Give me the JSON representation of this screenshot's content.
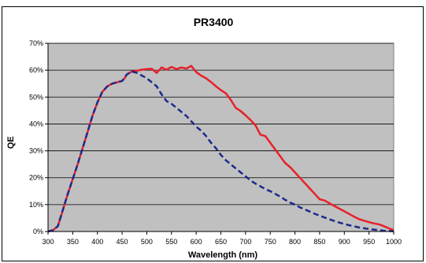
{
  "chart_data": {
    "type": "line",
    "title": "PR3400",
    "xlabel": "Wavelength (nm)",
    "ylabel": "QE",
    "xlim": [
      300,
      1000
    ],
    "ylim": [
      0,
      70
    ],
    "xticks": [
      300,
      350,
      400,
      450,
      500,
      550,
      600,
      650,
      700,
      750,
      800,
      850,
      900,
      950,
      1000
    ],
    "yticks": [
      "0%",
      "10%",
      "20%",
      "30%",
      "40%",
      "50%",
      "60%",
      "70%"
    ],
    "grid": true,
    "legend": "none",
    "plot_background": "#c0c0c0",
    "series": [
      {
        "color": "#e8202a",
        "style": "solid",
        "x": [
          300,
          310,
          320,
          330,
          340,
          350,
          360,
          370,
          380,
          390,
          400,
          410,
          420,
          430,
          440,
          450,
          455,
          460,
          470,
          480,
          490,
          500,
          510,
          520,
          530,
          540,
          550,
          560,
          570,
          580,
          590,
          600,
          610,
          620,
          630,
          640,
          650,
          660,
          670,
          680,
          690,
          700,
          710,
          720,
          730,
          740,
          750,
          760,
          770,
          780,
          790,
          800,
          810,
          820,
          830,
          840,
          850,
          860,
          870,
          880,
          890,
          900,
          910,
          920,
          930,
          940,
          950,
          960,
          970,
          980,
          990,
          1000
        ],
        "y": [
          0,
          0.5,
          2,
          8,
          14,
          19.5,
          25,
          31,
          37,
          43,
          48,
          52,
          54,
          55,
          55.5,
          56,
          57,
          58.5,
          59.5,
          59.8,
          60.2,
          60.4,
          60.5,
          59,
          61,
          60.2,
          61.2,
          60.4,
          61,
          60.6,
          61.6,
          59.3,
          58,
          57,
          55.6,
          54,
          52.6,
          51.4,
          49,
          46,
          44.8,
          43.2,
          41.5,
          39.5,
          36,
          35.5,
          33,
          30.5,
          28,
          25.5,
          24,
          22,
          20,
          18,
          16,
          14,
          12,
          11.5,
          10.5,
          9.5,
          8.5,
          7.5,
          6.5,
          5.5,
          4.6,
          4,
          3.5,
          3,
          2.7,
          2,
          1.2,
          0.5
        ]
      },
      {
        "color": "#1c2a8c",
        "style": "dashed",
        "x": [
          300,
          310,
          320,
          330,
          340,
          350,
          360,
          370,
          380,
          390,
          400,
          410,
          420,
          430,
          440,
          450,
          460,
          470,
          480,
          490,
          500,
          510,
          520,
          530,
          540,
          550,
          560,
          570,
          580,
          590,
          600,
          610,
          620,
          630,
          640,
          650,
          660,
          670,
          680,
          690,
          700,
          710,
          720,
          730,
          740,
          750,
          760,
          770,
          780,
          790,
          800,
          810,
          820,
          830,
          840,
          850,
          860,
          870,
          880,
          890,
          900,
          910,
          920,
          930,
          940,
          950,
          960,
          970,
          980,
          990,
          1000
        ],
        "y": [
          0,
          0.5,
          2,
          8,
          14,
          19.5,
          25,
          31,
          37,
          43,
          48,
          52,
          54,
          55,
          55.5,
          56,
          58.5,
          59.5,
          59,
          58,
          57,
          55.5,
          54,
          51,
          48.5,
          47.5,
          46,
          44.5,
          43,
          41,
          39,
          37.5,
          35.5,
          33,
          31,
          28.5,
          26.5,
          25,
          23.5,
          22,
          20.5,
          19,
          17.8,
          16.8,
          15.8,
          15,
          14,
          13,
          11.8,
          10.8,
          10,
          9,
          8.2,
          7.4,
          6.6,
          5.9,
          5.2,
          4.5,
          3.9,
          3.3,
          2.8,
          2.3,
          1.9,
          1.5,
          1.2,
          0.9,
          0.7,
          0.5,
          0.3,
          0.2,
          0.1
        ]
      }
    ]
  }
}
